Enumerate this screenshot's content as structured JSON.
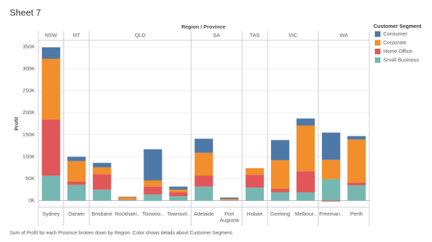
{
  "chart_data": {
    "type": "bar",
    "stacked": true,
    "title": "Sheet 7",
    "header": "Region / Province",
    "regions": [
      {
        "name": "NSW",
        "categories": [
          "Sydney"
        ]
      },
      {
        "name": "NT",
        "categories": [
          "Darwin"
        ]
      },
      {
        "name": "QLD",
        "categories": [
          "Brisbane",
          "Rockham..",
          "Toowoo..",
          "Townsvil.."
        ]
      },
      {
        "name": "SA",
        "categories": [
          "Adelaide",
          "Port Augusta"
        ]
      },
      {
        "name": "TAS",
        "categories": [
          "Hobart"
        ]
      },
      {
        "name": "VIC",
        "categories": [
          "Geelong",
          "Melbour.."
        ]
      },
      {
        "name": "WA",
        "categories": [
          "Freeman..",
          "Perth"
        ]
      }
    ],
    "legend_title": "Customer Segment",
    "series": [
      {
        "name": "Consumer",
        "color": "#4e79a7",
        "values": [
          26000,
          10000,
          10000,
          1000,
          71000,
          7000,
          32000,
          3000,
          0,
          46000,
          16000,
          62000,
          8000
        ]
      },
      {
        "name": "Corporate",
        "color": "#f28e2b",
        "values": [
          138000,
          46000,
          16000,
          5000,
          14000,
          6000,
          52000,
          2000,
          15000,
          65000,
          104000,
          44000,
          98000
        ]
      },
      {
        "name": "Home Office",
        "color": "#e15759",
        "values": [
          128000,
          8000,
          35000,
          1000,
          18000,
          9000,
          25000,
          1000,
          29000,
          8000,
          48000,
          -2000,
          6000
        ]
      },
      {
        "name": "Small Business",
        "color": "#76b7b2",
        "values": [
          57000,
          36000,
          25000,
          2000,
          14000,
          10000,
          32000,
          1000,
          30000,
          19000,
          19000,
          49000,
          35000
        ]
      }
    ],
    "y_label": "Profit",
    "ylim": [
      -15000,
      365000
    ],
    "yticks": [
      {
        "value": 0,
        "label": "0K"
      },
      {
        "value": 50000,
        "label": "50K"
      },
      {
        "value": 100000,
        "label": "100K"
      },
      {
        "value": 150000,
        "label": "150K"
      },
      {
        "value": 200000,
        "label": "200K"
      },
      {
        "value": 250000,
        "label": "250K"
      },
      {
        "value": 300000,
        "label": "300K"
      },
      {
        "value": 350000,
        "label": "350K"
      }
    ],
    "grid": true,
    "legend_position": "right",
    "caption": "Sum of Profit for each Province broken down by Region.  Color shows details about Customer Segment."
  }
}
